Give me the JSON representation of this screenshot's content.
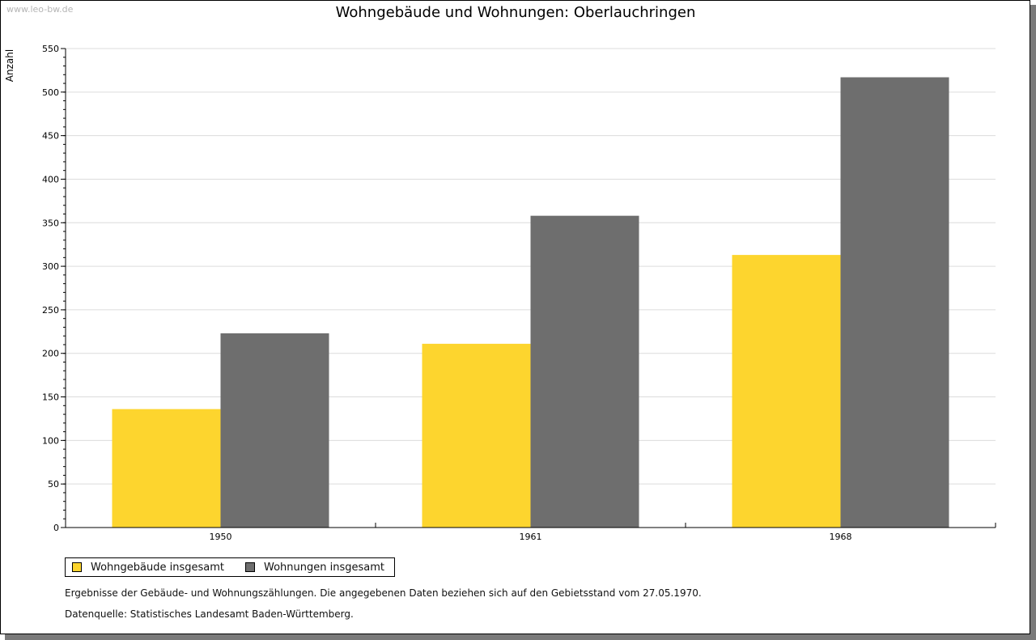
{
  "watermark": "www.leo-bw.de",
  "chart_data": {
    "type": "bar",
    "title": "Wohngebäude und Wohnungen: Oberlauchringen",
    "ylabel": "Anzahl",
    "xlabel": "",
    "categories": [
      "1950",
      "1961",
      "1968"
    ],
    "series": [
      {
        "name": "Wohngebäude insgesamt",
        "color": "#fdd52e",
        "values": [
          136,
          211,
          313
        ]
      },
      {
        "name": "Wohnungen insgesamt",
        "color": "#6e6e6e",
        "values": [
          223,
          358,
          517
        ]
      }
    ],
    "ylim": [
      0,
      550
    ],
    "yticks": [
      0,
      50,
      100,
      150,
      200,
      250,
      300,
      350,
      400,
      450,
      500,
      550
    ],
    "grid": true,
    "legend": "bottom-left"
  },
  "notes": {
    "line1": "Ergebnisse der Gebäude- und Wohnungszählungen. Die angegebenen Daten beziehen sich auf den Gebietsstand vom 27.05.1970.",
    "line2": "Datenquelle: Statistisches Landesamt Baden-Württemberg."
  }
}
